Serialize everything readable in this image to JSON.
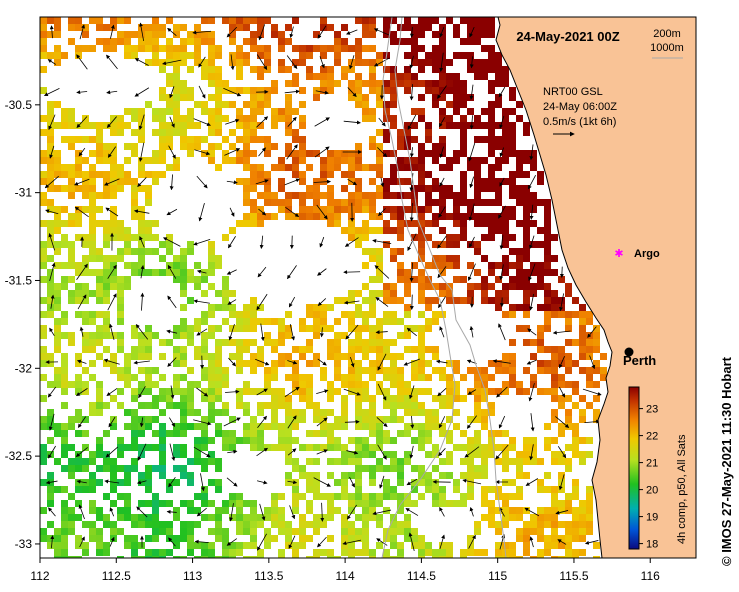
{
  "title": "24-May-2021 00Z",
  "legend_depth": {
    "line1": "200m",
    "line2": "1000m"
  },
  "current_note": {
    "line1": "NRT00 GSL",
    "line2": "24-May 06:00Z",
    "line3": "0.5m/s (1kt 6h)"
  },
  "places": [
    {
      "name": "Argo",
      "lon": 115.87,
      "lat": -31.45,
      "marker": "magenta-star"
    },
    {
      "name": "Perth",
      "lon": 115.86,
      "lat": -31.95,
      "marker": "black-dot"
    }
  ],
  "axes": {
    "x_ticks": [
      "112",
      "112.5",
      "113",
      "113.5",
      "114",
      "114.5",
      "115",
      "115.5",
      "116"
    ],
    "y_ticks": [
      "-30.5",
      "-31",
      "-31.5",
      "-32",
      "-32.5",
      "-33"
    ],
    "lon_range": [
      112,
      116.3
    ],
    "lat_range": [
      -33.08,
      -30.0
    ]
  },
  "colorbar": {
    "ticks": [
      "23",
      "22",
      "21",
      "20",
      "19",
      "18"
    ],
    "label": "4h comp, p50, All Sats",
    "range": [
      17.8,
      23.8
    ]
  },
  "credit": "© IMOS 27-May-2021 11:30 Hobart",
  "colors": {
    "land": "#f9c396",
    "coast": "#000000",
    "isobath": "#a8a8a8"
  }
}
